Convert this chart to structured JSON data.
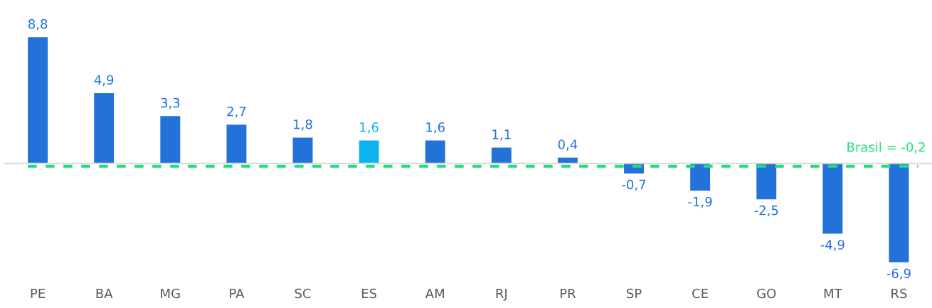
{
  "chart_data": {
    "type": "bar",
    "categories": [
      "PE",
      "BA",
      "MG",
      "PA",
      "SC",
      "ES",
      "AM",
      "RJ",
      "PR",
      "SP",
      "CE",
      "GO",
      "MT",
      "RS"
    ],
    "values": [
      8.8,
      4.9,
      3.3,
      2.7,
      1.8,
      1.6,
      1.6,
      1.1,
      0.4,
      -0.7,
      -1.9,
      -2.5,
      -4.9,
      -6.9
    ],
    "colors": [
      "#2272d9",
      "#2272d9",
      "#2272d9",
      "#2272d9",
      "#2272d9",
      "#0cb4ee",
      "#2272d9",
      "#2272d9",
      "#2272d9",
      "#2272d9",
      "#2272d9",
      "#2272d9",
      "#2272d9",
      "#2272d9"
    ],
    "value_labels": [
      "8,8",
      "4,9",
      "3,3",
      "2,7",
      "1,8",
      "1,6",
      "1,6",
      "1,1",
      "0,4",
      "-0,7",
      "-1,9",
      "-2,5",
      "-4,9",
      "-6,9"
    ],
    "tick_labels": "x",
    "grid": false,
    "legend": false,
    "ref_lines": [
      {
        "axis": "y",
        "value": -0.2,
        "label": "Brasil = -0,2",
        "color": "#1ee07a",
        "line_style": "dashed"
      }
    ]
  }
}
